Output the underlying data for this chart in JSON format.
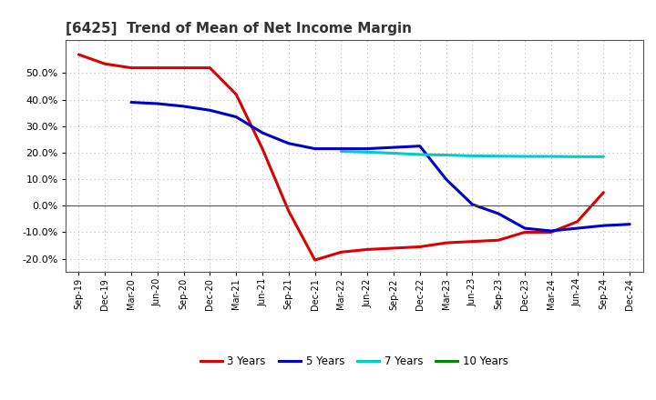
{
  "title": "[6425]  Trend of Mean of Net Income Margin",
  "x_labels": [
    "Sep-19",
    "Dec-19",
    "Mar-20",
    "Jun-20",
    "Sep-20",
    "Dec-20",
    "Mar-21",
    "Jun-21",
    "Sep-21",
    "Dec-21",
    "Mar-22",
    "Jun-22",
    "Sep-22",
    "Dec-22",
    "Mar-23",
    "Jun-23",
    "Sep-23",
    "Dec-23",
    "Mar-24",
    "Jun-24",
    "Sep-24",
    "Dec-24"
  ],
  "series_order": [
    "3 Years",
    "5 Years",
    "7 Years",
    "10 Years"
  ],
  "series": {
    "3 Years": {
      "color": "#dd0000",
      "values": [
        0.57,
        0.535,
        0.52,
        0.52,
        0.52,
        0.52,
        0.42,
        0.215,
        -0.02,
        -0.205,
        -0.175,
        -0.165,
        -0.16,
        -0.155,
        -0.14,
        -0.135,
        -0.13,
        -0.1,
        -0.1,
        -0.06,
        0.05,
        null
      ]
    },
    "5 Years": {
      "color": "#0000cc",
      "values": [
        null,
        null,
        0.39,
        0.385,
        0.375,
        0.36,
        0.335,
        0.275,
        0.235,
        0.215,
        0.215,
        0.215,
        0.22,
        0.225,
        0.1,
        0.005,
        -0.03,
        -0.085,
        -0.095,
        -0.085,
        -0.075,
        -0.07
      ]
    },
    "7 Years": {
      "color": "#00cccc",
      "values": [
        null,
        null,
        null,
        null,
        null,
        null,
        null,
        null,
        null,
        null,
        0.205,
        0.202,
        0.198,
        0.193,
        0.191,
        0.188,
        0.187,
        0.186,
        0.186,
        0.185,
        0.185,
        null
      ]
    },
    "10 Years": {
      "color": "#008800",
      "values": [
        null,
        null,
        null,
        null,
        null,
        null,
        null,
        null,
        null,
        null,
        null,
        null,
        null,
        null,
        null,
        null,
        null,
        null,
        null,
        null,
        null,
        null
      ]
    }
  },
  "ylim": [
    -0.25,
    0.625
  ],
  "yticks": [
    -0.2,
    -0.1,
    0.0,
    0.1,
    0.2,
    0.3,
    0.4,
    0.5
  ],
  "background_color": "#ffffff",
  "grid_color": "#bbbbbb",
  "linewidth": 2.2
}
